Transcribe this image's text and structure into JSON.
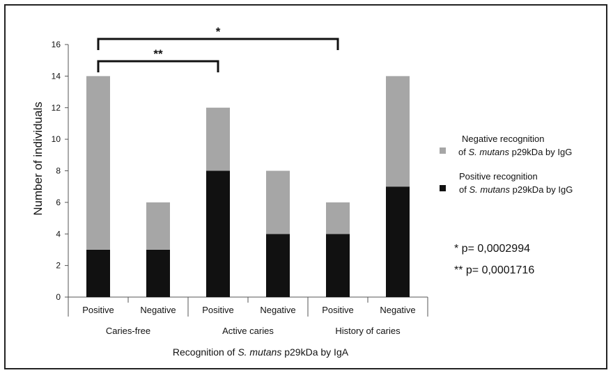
{
  "chart_data": {
    "type": "bar",
    "stacked": true,
    "categories": [
      "Positive",
      "Negative",
      "Positive",
      "Negative",
      "Positive",
      "Negative"
    ],
    "groups": [
      "Caries-free",
      "Active caries",
      "History of caries"
    ],
    "series": [
      {
        "name": "Positive recognition of S. mutans p29kDa by IgG",
        "color": "#111111",
        "values": [
          3,
          3,
          8,
          4,
          4,
          7
        ]
      },
      {
        "name": "Negative recognition of S. mutans p29kDa by IgG",
        "color": "#a6a6a6",
        "values": [
          11,
          3,
          4,
          4,
          2,
          7
        ]
      }
    ],
    "ylabel": "Number of individuals",
    "xlabel": {
      "prefix": "Recognition of ",
      "italic": "S. mutans",
      "suffix": " p29kDa  by IgA"
    },
    "ylim": [
      0,
      16
    ],
    "yticks": [
      0,
      2,
      4,
      6,
      8,
      10,
      12,
      14,
      16
    ],
    "grid": false,
    "legend": {
      "position": "right",
      "entries": [
        {
          "line1": "Negative  recognition",
          "prefix": "of ",
          "italic": "S. mutans",
          "suffix": " p29kDa  by IgG",
          "color": "#a6a6a6"
        },
        {
          "line1": "Positive recognition",
          "prefix": "of ",
          "italic": "S. mutans",
          "suffix": " p29kDa  by IgG",
          "color": "#111111"
        }
      ]
    },
    "significance": [
      {
        "label": "**",
        "from_index": 0,
        "to_index": 2
      },
      {
        "label": "*",
        "from_index": 0,
        "to_index": 4
      }
    ],
    "pvalues": [
      "* p= 0,0002994",
      "** p= 0,0001716"
    ]
  }
}
